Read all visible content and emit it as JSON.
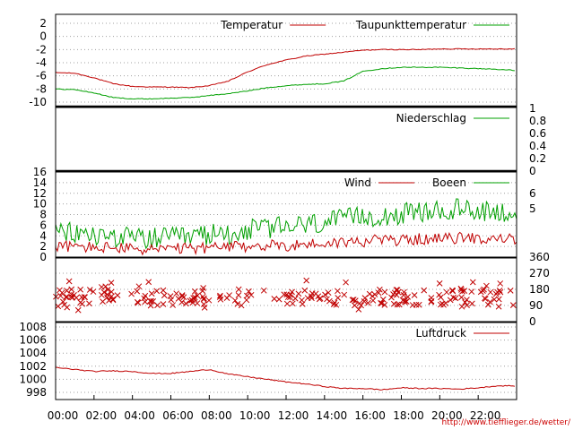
{
  "x_tick_labels": [
    "00:00",
    "02:00",
    "04:00",
    "06:00",
    "08:00",
    "10:00",
    "12:00",
    "14:00",
    "16:00",
    "18:00",
    "20:00",
    "22:00"
  ],
  "credit": "http://www.tiefflieger.de/wetter/",
  "colors": {
    "red": "#c00000",
    "green": "#00a000",
    "grid": "#a0a0a0",
    "frame": "#000000"
  },
  "chart_data": [
    {
      "type": "line",
      "panel": "temperature",
      "ylim": [
        -11,
        3
      ],
      "y_ticks": [
        2,
        0,
        -2,
        -4,
        -6,
        -8,
        -10
      ],
      "grid": true,
      "legend_position": "top-right",
      "x_hours": [
        0,
        1,
        2,
        3,
        4,
        5,
        6,
        7,
        8,
        9,
        10,
        11,
        12,
        13,
        14,
        15,
        16,
        17,
        18,
        19,
        20,
        21,
        22,
        23,
        24
      ],
      "series": [
        {
          "name": "Temperatur",
          "color": "#c00000",
          "values": [
            -5.5,
            -5.6,
            -6.3,
            -7.2,
            -7.6,
            -7.7,
            -7.7,
            -7.8,
            -7.5,
            -6.8,
            -5.4,
            -4.3,
            -3.6,
            -3.0,
            -2.7,
            -2.4,
            -2.1,
            -2.0,
            -2.0,
            -2.0,
            -1.9,
            -1.9,
            -1.9,
            -1.9,
            -1.9
          ]
        },
        {
          "name": "Taupunkttemperatur",
          "color": "#00a000",
          "values": [
            -8.0,
            -8.1,
            -8.6,
            -9.3,
            -9.5,
            -9.5,
            -9.4,
            -9.3,
            -9.0,
            -8.7,
            -8.3,
            -7.8,
            -7.5,
            -7.3,
            -7.2,
            -6.8,
            -5.3,
            -4.9,
            -4.7,
            -4.7,
            -4.7,
            -4.8,
            -4.9,
            -5.0,
            -5.2
          ]
        }
      ]
    },
    {
      "type": "line",
      "panel": "precipitation",
      "ylim": [
        0,
        1
      ],
      "y_ticks": [
        "1",
        "0.8",
        "0.6",
        "0.4",
        "0.2",
        "0"
      ],
      "grid": false,
      "legend_position": "top-right",
      "series": [
        {
          "name": "Niederschlag",
          "color": "#00a000",
          "values": [
            0,
            0
          ]
        }
      ],
      "x_hours": [
        0,
        24
      ]
    },
    {
      "type": "line",
      "panel": "wind",
      "ylim": [
        0,
        16
      ],
      "y_ticks": [
        16,
        14,
        12,
        10,
        8,
        6,
        4,
        2,
        0
      ],
      "right_ticks": [
        "6",
        "5"
      ],
      "grid": true,
      "legend_position": "top-right",
      "x_hours": [
        0,
        1,
        2,
        3,
        4,
        5,
        6,
        7,
        8,
        9,
        10,
        11,
        12,
        13,
        14,
        15,
        16,
        17,
        18,
        19,
        20,
        21,
        22,
        23,
        24
      ],
      "series": [
        {
          "name": "Wind",
          "color": "#c00000",
          "values": [
            2.0,
            2.0,
            1.8,
            1.8,
            1.5,
            1.5,
            1.5,
            1.6,
            1.8,
            1.8,
            2.0,
            2.2,
            2.2,
            2.4,
            2.6,
            2.8,
            3.0,
            3.2,
            3.2,
            3.4,
            3.4,
            3.6,
            3.6,
            3.4,
            3.4
          ]
        },
        {
          "name": "Boeen",
          "color": "#00a000",
          "values": [
            4.5,
            4.5,
            4.0,
            4.0,
            3.5,
            3.5,
            3.5,
            3.8,
            4.2,
            4.5,
            5.0,
            5.5,
            5.5,
            6.0,
            6.5,
            7.0,
            7.5,
            8.0,
            8.0,
            8.5,
            8.5,
            9.0,
            9.0,
            8.5,
            8.5
          ]
        }
      ]
    },
    {
      "type": "scatter",
      "panel": "wind_direction",
      "ylim": [
        0,
        360
      ],
      "right_ticks": [
        "360",
        "270",
        "180",
        "90",
        "0"
      ],
      "grid": true,
      "series": [
        {
          "color": "#c00000",
          "marker": "x",
          "typical_range": [
            90,
            180
          ]
        }
      ]
    },
    {
      "type": "line",
      "panel": "pressure",
      "ylim": [
        997,
        1010
      ],
      "y_ticks": [
        1008,
        1006,
        1004,
        1002,
        1000,
        998
      ],
      "grid": true,
      "legend_position": "top-right",
      "x_hours": [
        0,
        1,
        2,
        3,
        4,
        5,
        6,
        7,
        8,
        9,
        10,
        11,
        12,
        13,
        14,
        15,
        16,
        17,
        18,
        19,
        20,
        21,
        22,
        23,
        24
      ],
      "series": [
        {
          "name": "Luftdruck",
          "color": "#c00000",
          "values": [
            1001.8,
            1001.5,
            1001.2,
            1001.3,
            1001.2,
            1000.9,
            1000.9,
            1001.2,
            1001.5,
            1000.8,
            1000.4,
            1000.0,
            999.6,
            999.3,
            998.9,
            998.6,
            998.6,
            998.4,
            998.7,
            998.6,
            998.6,
            998.5,
            998.7,
            999.0,
            999.0
          ]
        }
      ]
    }
  ]
}
